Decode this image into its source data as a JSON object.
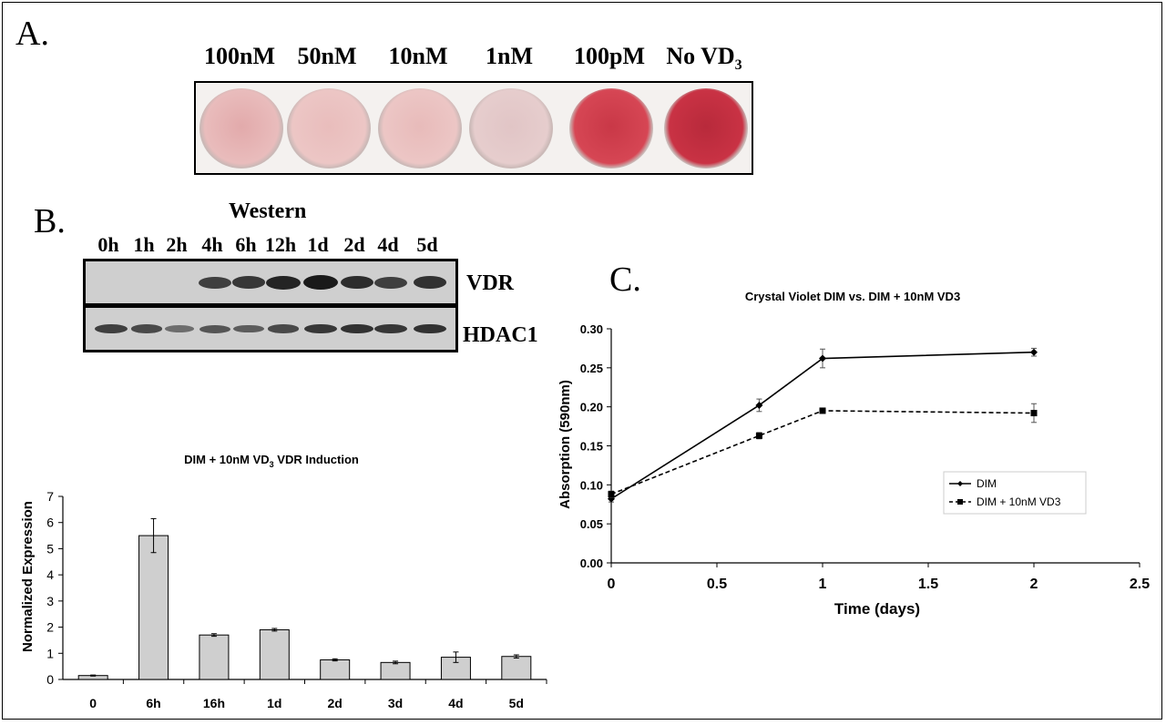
{
  "panel_a": {
    "letter": "A.",
    "wells": [
      {
        "label": "100nM",
        "color": "#e9bcbc",
        "center": "#e2aaab"
      },
      {
        "label": "50nM",
        "color": "#ecc6c5",
        "center": "#e9bdbc"
      },
      {
        "label": "10nM",
        "color": "#ecc6c5",
        "center": "#e8bbba"
      },
      {
        "label": "1nM",
        "color": "#e6cdcd",
        "center": "#e1c5c6"
      },
      {
        "label": "100pM",
        "color": "#d64654",
        "center": "#c93847"
      },
      {
        "label": "No VD",
        "sub": "3",
        "color": "#c93244",
        "center": "#b82a3b"
      }
    ]
  },
  "panel_b": {
    "letter": "B.",
    "title": "Western",
    "lanes": [
      "0h",
      "1h",
      "2h",
      "4h",
      "6h",
      "12h",
      "1d",
      "2d",
      "4d",
      "5d"
    ],
    "rows": [
      {
        "label": "VDR",
        "intensity": [
          0,
          0,
          0,
          0.7,
          0.75,
          0.9,
          1.0,
          0.85,
          0.7,
          0.8
        ]
      },
      {
        "label": "HDAC1",
        "intensity": [
          0.7,
          0.6,
          0.3,
          0.5,
          0.45,
          0.6,
          0.75,
          0.8,
          0.75,
          0.8
        ]
      }
    ]
  },
  "panel_c": {
    "letter": "C."
  },
  "chart_data": [
    {
      "type": "bar",
      "title": "DIM + 10nM VD",
      "title_sub": "3",
      "title_tail": " VDR Induction",
      "xlabel": "",
      "ylabel": "Normalized Expression",
      "categories": [
        "0",
        "6h",
        "16h",
        "1d",
        "2d",
        "3d",
        "4d",
        "5d"
      ],
      "values": [
        0.15,
        5.5,
        1.7,
        1.9,
        0.75,
        0.65,
        0.85,
        0.88
      ],
      "errors": [
        0.02,
        0.65,
        0.05,
        0.05,
        0.04,
        0.05,
        0.2,
        0.06
      ],
      "ylim": [
        0,
        7
      ],
      "yticks": [
        "0",
        "1",
        "2",
        "3",
        "4",
        "5",
        "6",
        "7"
      ],
      "bar_color": "#cfcfcf"
    },
    {
      "type": "line",
      "title": "Crystal Violet DIM vs. DIM + 10nM VD3",
      "xlabel": "Time (days)",
      "ylabel": "Absorption (590nm)",
      "xlim": [
        0,
        2.5
      ],
      "ylim": [
        0,
        0.3
      ],
      "xticks": [
        "0",
        "0.5",
        "1",
        "1.5",
        "2",
        "2.5"
      ],
      "yticks": [
        "0.00",
        "0.05",
        "0.10",
        "0.15",
        "0.20",
        "0.25",
        "0.30"
      ],
      "legend_position": "right",
      "series": [
        {
          "name": "DIM",
          "x": [
            0,
            0.7,
            1,
            2
          ],
          "y": [
            0.082,
            0.202,
            0.262,
            0.27
          ],
          "err": [
            0.004,
            0.008,
            0.012,
            0.005
          ],
          "style": "solid",
          "marker": "diamond"
        },
        {
          "name": "DIM + 10nM VD3",
          "x": [
            0,
            0.7,
            1,
            2
          ],
          "y": [
            0.088,
            0.163,
            0.195,
            0.192
          ],
          "err": [
            0.004,
            0.004,
            0.002,
            0.012
          ],
          "style": "dashed",
          "marker": "square"
        }
      ]
    }
  ]
}
